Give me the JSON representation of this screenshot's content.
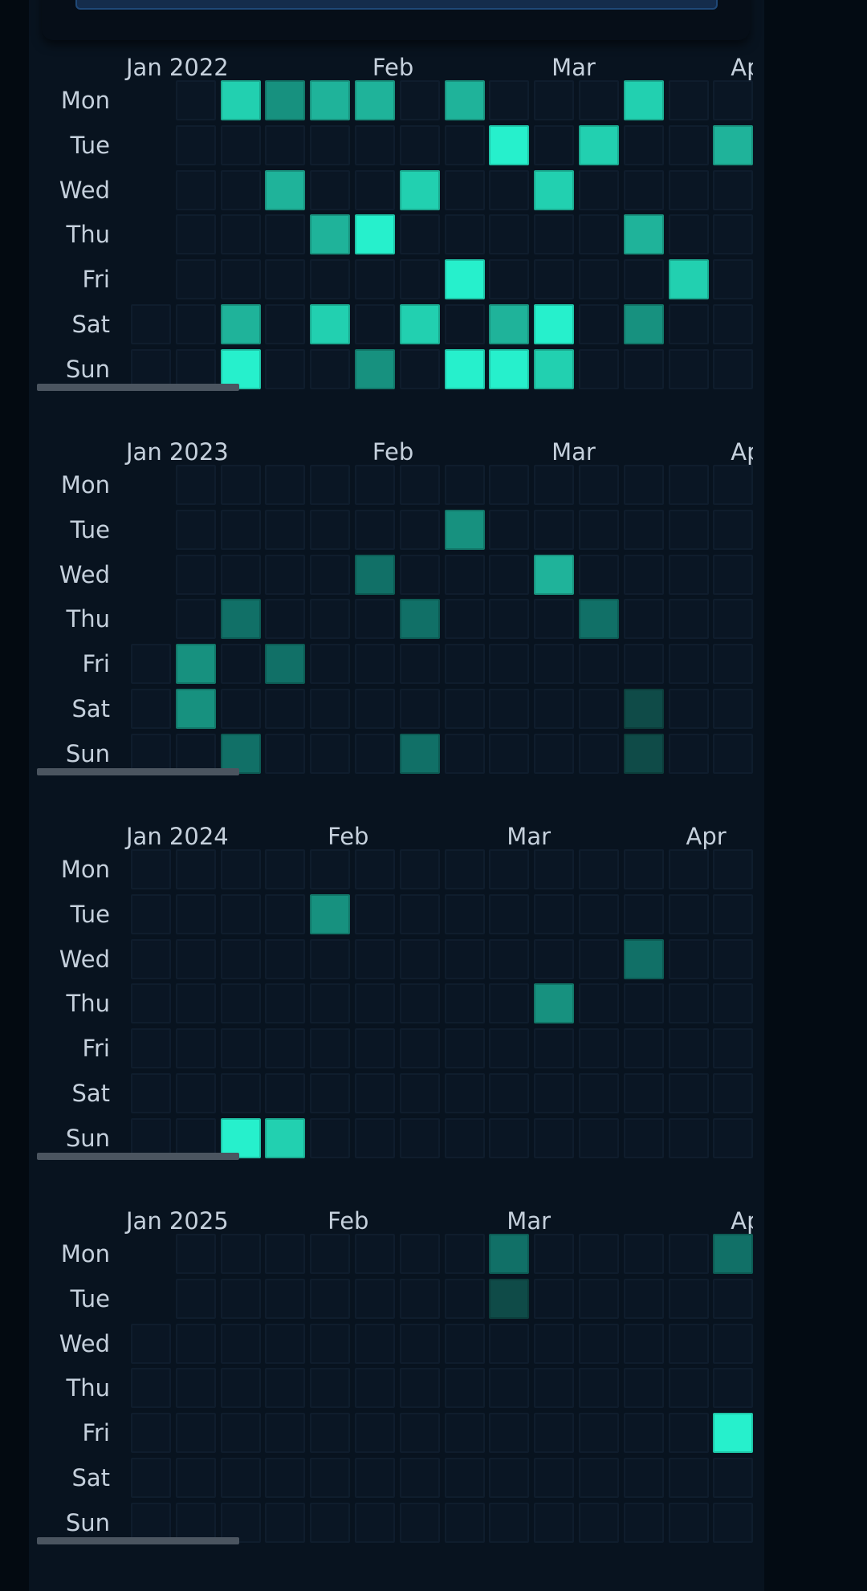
{
  "colors": {
    "background": "#040c14",
    "panel": "#08131f",
    "empty_cell": "#0a1624",
    "intensity": [
      "#0f4b48",
      "#117067",
      "#17917f",
      "#1fb39a",
      "#22d0b0",
      "#26f0cc"
    ]
  },
  "day_labels": [
    "Mon",
    "Tue",
    "Wed",
    "Thu",
    "Fri",
    "Sat",
    "Sun"
  ],
  "years": [
    {
      "months": [
        {
          "label": "Jan 2022",
          "week": 0
        },
        {
          "label": "Feb",
          "week": 5.5
        },
        {
          "label": "Mar",
          "week": 9.5
        },
        {
          "label": "Ap",
          "week": 13.5
        }
      ],
      "first_col_start_day": 5,
      "weeks": 14,
      "filled": [
        {
          "week": 2,
          "day": 0,
          "level": 4
        },
        {
          "week": 3,
          "day": 0,
          "level": 2
        },
        {
          "week": 4,
          "day": 0,
          "level": 3
        },
        {
          "week": 5,
          "day": 0,
          "level": 3
        },
        {
          "week": 7,
          "day": 0,
          "level": 3
        },
        {
          "week": 11,
          "day": 0,
          "level": 4
        },
        {
          "week": 8,
          "day": 1,
          "level": 5
        },
        {
          "week": 10,
          "day": 1,
          "level": 4
        },
        {
          "week": 13,
          "day": 1,
          "level": 3
        },
        {
          "week": 3,
          "day": 2,
          "level": 3
        },
        {
          "week": 6,
          "day": 2,
          "level": 4
        },
        {
          "week": 9,
          "day": 2,
          "level": 4
        },
        {
          "week": 4,
          "day": 3,
          "level": 3
        },
        {
          "week": 5,
          "day": 3,
          "level": 5
        },
        {
          "week": 11,
          "day": 3,
          "level": 3
        },
        {
          "week": 7,
          "day": 4,
          "level": 5
        },
        {
          "week": 12,
          "day": 4,
          "level": 4
        },
        {
          "week": 2,
          "day": 5,
          "level": 3
        },
        {
          "week": 4,
          "day": 5,
          "level": 4
        },
        {
          "week": 6,
          "day": 5,
          "level": 4
        },
        {
          "week": 8,
          "day": 5,
          "level": 3
        },
        {
          "week": 9,
          "day": 5,
          "level": 5
        },
        {
          "week": 11,
          "day": 5,
          "level": 2
        },
        {
          "week": 2,
          "day": 6,
          "level": 5
        },
        {
          "week": 5,
          "day": 6,
          "level": 2
        },
        {
          "week": 7,
          "day": 6,
          "level": 5
        },
        {
          "week": 8,
          "day": 6,
          "level": 5
        },
        {
          "week": 9,
          "day": 6,
          "level": 4
        }
      ]
    },
    {
      "months": [
        {
          "label": "Jan 2023",
          "week": 0
        },
        {
          "label": "Feb",
          "week": 5.5
        },
        {
          "label": "Mar",
          "week": 9.5
        },
        {
          "label": "Ap",
          "week": 13.5
        }
      ],
      "first_col_start_day": 4,
      "weeks": 14,
      "filled": [
        {
          "week": 7,
          "day": 1,
          "level": 2
        },
        {
          "week": 5,
          "day": 2,
          "level": 1
        },
        {
          "week": 9,
          "day": 2,
          "level": 3
        },
        {
          "week": 2,
          "day": 3,
          "level": 1
        },
        {
          "week": 6,
          "day": 3,
          "level": 1
        },
        {
          "week": 10,
          "day": 3,
          "level": 1
        },
        {
          "week": 1,
          "day": 4,
          "level": 2
        },
        {
          "week": 3,
          "day": 4,
          "level": 1
        },
        {
          "week": 1,
          "day": 5,
          "level": 2
        },
        {
          "week": 11,
          "day": 5,
          "level": 0
        },
        {
          "week": 2,
          "day": 6,
          "level": 1
        },
        {
          "week": 6,
          "day": 6,
          "level": 1
        },
        {
          "week": 11,
          "day": 6,
          "level": 0
        }
      ]
    },
    {
      "months": [
        {
          "label": "Jan 2024",
          "week": 0
        },
        {
          "label": "Feb",
          "week": 4.5
        },
        {
          "label": "Mar",
          "week": 8.5
        },
        {
          "label": "Apr",
          "week": 12.5
        }
      ],
      "first_col_start_day": 0,
      "weeks": 14,
      "filled": [
        {
          "week": 4,
          "day": 1,
          "level": 2
        },
        {
          "week": 11,
          "day": 2,
          "level": 1
        },
        {
          "week": 9,
          "day": 3,
          "level": 2
        },
        {
          "week": 2,
          "day": 6,
          "level": 5
        },
        {
          "week": 3,
          "day": 6,
          "level": 4
        }
      ]
    },
    {
      "months": [
        {
          "label": "Jan 2025",
          "week": 0
        },
        {
          "label": "Feb",
          "week": 4.5
        },
        {
          "label": "Mar",
          "week": 8.5
        },
        {
          "label": "Ap",
          "week": 13.5
        }
      ],
      "first_col_start_day": 2,
      "weeks": 14,
      "filled": [
        {
          "week": 8,
          "day": 0,
          "level": 1
        },
        {
          "week": 13,
          "day": 0,
          "level": 1
        },
        {
          "week": 8,
          "day": 1,
          "level": 0
        },
        {
          "week": 13,
          "day": 4,
          "level": 5
        }
      ]
    }
  ],
  "scrollbar": {
    "thumb_fraction": 0.28
  }
}
